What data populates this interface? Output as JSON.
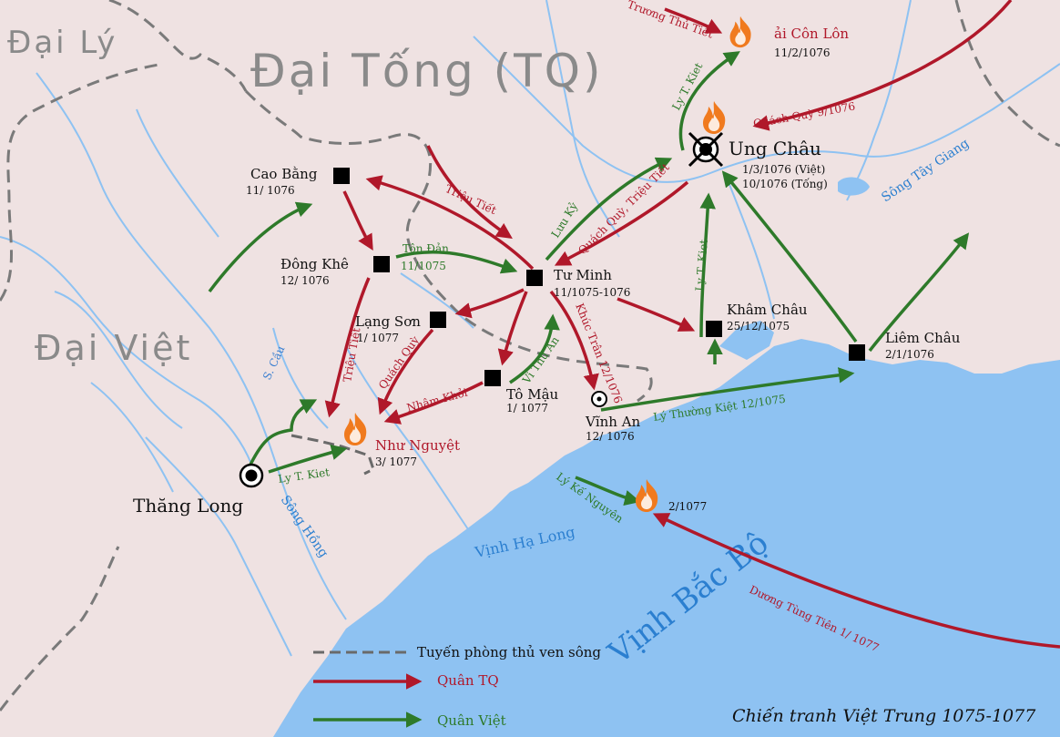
{
  "regions": {
    "dai_ly": "Đại Lý",
    "dai_tong": "Đại Tống (TQ)",
    "dai_viet": "Đại Việt"
  },
  "places": {
    "con_lon": {
      "name": "ải Côn Lôn",
      "date": "11/2/1076"
    },
    "ung_chau": {
      "name": "Ung Châu",
      "date1": "1/3/1076 (Việt)",
      "date2": "10/1076 (Tống)"
    },
    "cao_bang": {
      "name": "Cao Bằng",
      "date": "11/ 1076"
    },
    "dong_khe": {
      "name": "Đông Khê",
      "date": "12/ 1076"
    },
    "tu_minh": {
      "name": "Tư Minh",
      "date": "11/1075-1076"
    },
    "lang_son": {
      "name": "Lạng Sơn",
      "date": "1/ 1077"
    },
    "to_mau": {
      "name": "Tô Mậu",
      "date": "1/ 1077"
    },
    "vinh_an": {
      "name": "Vĩnh An",
      "date": "12/ 1076"
    },
    "kham_chau": {
      "name": "Khâm Châu",
      "date": "25/12/1075"
    },
    "liem_chau": {
      "name": "Liêm Châu",
      "date": "2/1/1076"
    },
    "nhu_nguyet": {
      "name": "Như Nguyệt",
      "date": "3/ 1077"
    },
    "thang_long": {
      "name": "Thăng Long"
    },
    "sea_battle": {
      "date": "2/1077"
    }
  },
  "water": {
    "song_tay_giang": "Sông Tây Giang",
    "song_hong": "Sông Hồng",
    "s_cau": "S. Cầu",
    "vinh_ha_long": "Vịnh Hạ Long",
    "vinh_bac_bo": "Vịnh Bắc Bộ"
  },
  "routes_red": {
    "truong_thu_tiet": "Trương Thủ Tiết",
    "quach_quy_9": "Quách Quỳ 9/1076",
    "quach_quy_trieu_tiet": "Quách Quỳ, Triệu Tiết",
    "trieu_tiet_1": "Triệu Tiết",
    "trieu_tiet_2": "Triệu Tiết",
    "khuc_tran": "Khúc Trân 12/1076",
    "quach_quy": "Quách Quỳ",
    "nham_khoi": "Nhâm Khởi",
    "duong_tung_tien": "Dương Tùng Tiên 1/ 1077"
  },
  "routes_green": {
    "ly_t_kiet_1": "Ly T. Kiet",
    "ly_t_kiet_2": "Ly T. Kiet",
    "ly_t_kiet_3": "Ly T. Kiet",
    "luu_ky": "Lưu Kỷ",
    "ton_dan": "Tôn Đản",
    "ton_dan_date": "11/1075",
    "vi_thu_an": "Vi Thủ An",
    "ly_thuong_kiet": "Lý Thường Kiệt 12/1075",
    "ly_ke_nguyen": "Lý Kế Nguyên"
  },
  "legend": {
    "defense_line": "Tuyến phòng thủ ven sông",
    "chinese": "Quân TQ",
    "vietnamese": "Quân Việt"
  },
  "title": "Chiến tranh Việt Trung 1075-1077",
  "colors": {
    "red": "#b0182a",
    "green": "#2e7a2a",
    "sea": "#8ec2f2",
    "land": "#efe2e2",
    "fire": "#f07a1e"
  }
}
